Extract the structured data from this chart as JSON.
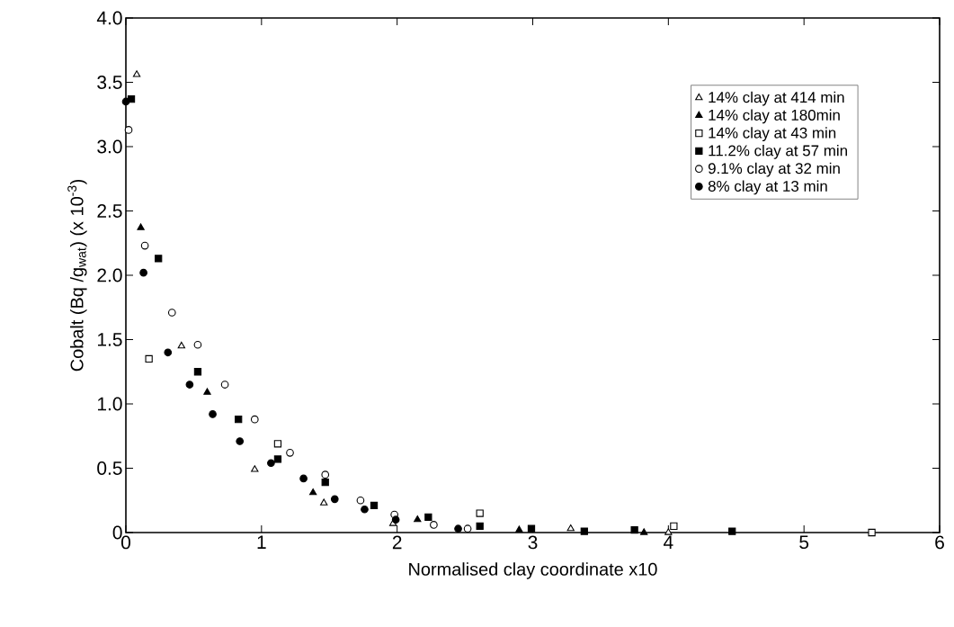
{
  "chart_data": {
    "type": "scatter",
    "xlabel": "Normalised clay coordinate x10",
    "ylabel": "Cobalt (Bq /g$_{wat}$) (x 10$^{-3}$)",
    "xlim": [
      0,
      6
    ],
    "xticks": [
      0,
      1,
      2,
      3,
      4,
      5,
      6
    ],
    "ylim": [
      0,
      4
    ],
    "yticks": [
      0,
      0.5,
      {
        "value": 1,
        "label": "1.0"
      },
      1.5,
      {
        "value": 2,
        "label": "2.0"
      },
      2.5,
      {
        "value": 3,
        "label": "3.0"
      },
      3.5,
      {
        "value": 4,
        "label": "4.0"
      }
    ],
    "grid": false,
    "legend": "top right",
    "series": [
      {
        "name": "14% clay at 414 min",
        "color": "#000000",
        "marker": "triangle",
        "x": [
          0.08,
          0.41,
          0.95,
          1.46,
          1.97,
          3.28,
          4.0
        ],
        "values": [
          3.56,
          1.45,
          0.49,
          0.23,
          0.07,
          0.03,
          0.0
        ]
      },
      {
        "name": "14% clay at 180min",
        "color": "#000000",
        "marker": "triangle",
        "x": [
          0.11,
          0.6,
          1.38,
          2.15,
          2.9,
          3.82
        ],
        "values": [
          2.37,
          1.09,
          0.31,
          0.1,
          0.02,
          0.0
        ]
      },
      {
        "name": "14% clay at 43 min",
        "color": "#000000",
        "marker": "square",
        "x": [
          0.17,
          1.12,
          2.61,
          4.04,
          5.5
        ],
        "values": [
          1.35,
          0.69,
          0.15,
          0.05,
          0.0
        ]
      },
      {
        "name": "11.2% clay at 57 min",
        "color": "#000000",
        "marker": "square",
        "x": [
          0.04,
          0.24,
          0.53,
          0.83,
          1.12,
          1.47,
          1.83,
          2.23,
          2.61,
          2.99,
          3.38,
          3.75,
          4.47
        ],
        "values": [
          3.37,
          2.13,
          1.25,
          0.88,
          0.57,
          0.39,
          0.21,
          0.12,
          0.05,
          0.03,
          0.01,
          0.02,
          0.01
        ]
      },
      {
        "name": "9.1% clay at 32 min",
        "color": "#000000",
        "marker": "circle",
        "x": [
          0.02,
          0.14,
          0.34,
          0.53,
          0.73,
          0.95,
          1.21,
          1.47,
          1.73,
          1.98,
          2.27,
          2.52
        ],
        "values": [
          3.13,
          2.23,
          1.71,
          1.46,
          1.15,
          0.88,
          0.62,
          0.45,
          0.25,
          0.14,
          0.06,
          0.03
        ]
      },
      {
        "name": "8% clay at 13 min",
        "color": "#000000",
        "marker": "circle",
        "x": [
          0.0,
          0.13,
          0.31,
          0.47,
          0.64,
          0.84,
          1.07,
          1.31,
          1.54,
          1.76,
          1.99,
          2.45
        ],
        "values": [
          3.35,
          2.02,
          1.4,
          1.15,
          0.92,
          0.71,
          0.54,
          0.42,
          0.26,
          0.18,
          0.1,
          0.03
        ]
      }
    ]
  }
}
